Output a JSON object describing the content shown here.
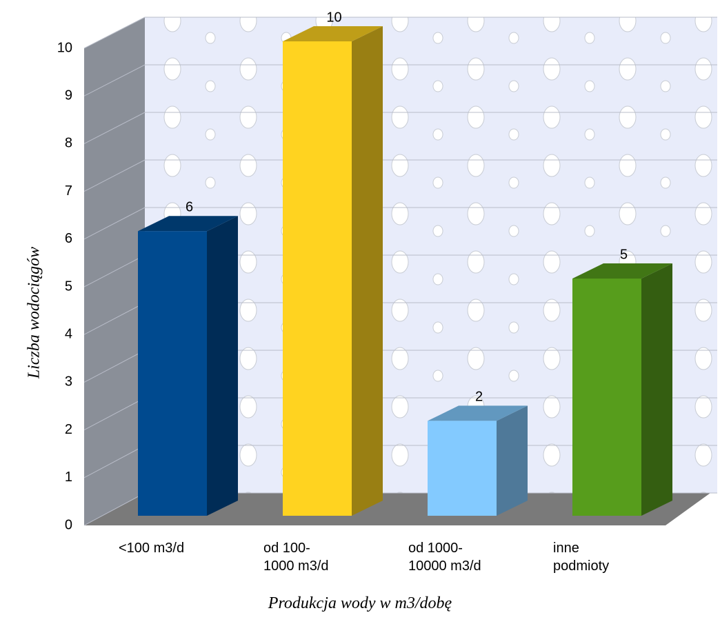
{
  "chart_data": {
    "type": "bar3d",
    "categories": [
      "<100 m3/d",
      "od 100-\n1000 m3/d",
      "od 1000-\n10000 m3/d",
      "inne\npodmioty"
    ],
    "values": [
      6,
      10,
      2,
      5
    ],
    "colors": [
      "#004a8f",
      "#ffd320",
      "#83caff",
      "#579d1c"
    ],
    "y_label": "Liczba wodociągów",
    "x_label": "Produkcja wody w m3/dobę",
    "ylim": [
      0,
      10
    ],
    "yticks": [
      0,
      1,
      2,
      3,
      4,
      5,
      6,
      7,
      8,
      9,
      10
    ],
    "grid": true
  }
}
